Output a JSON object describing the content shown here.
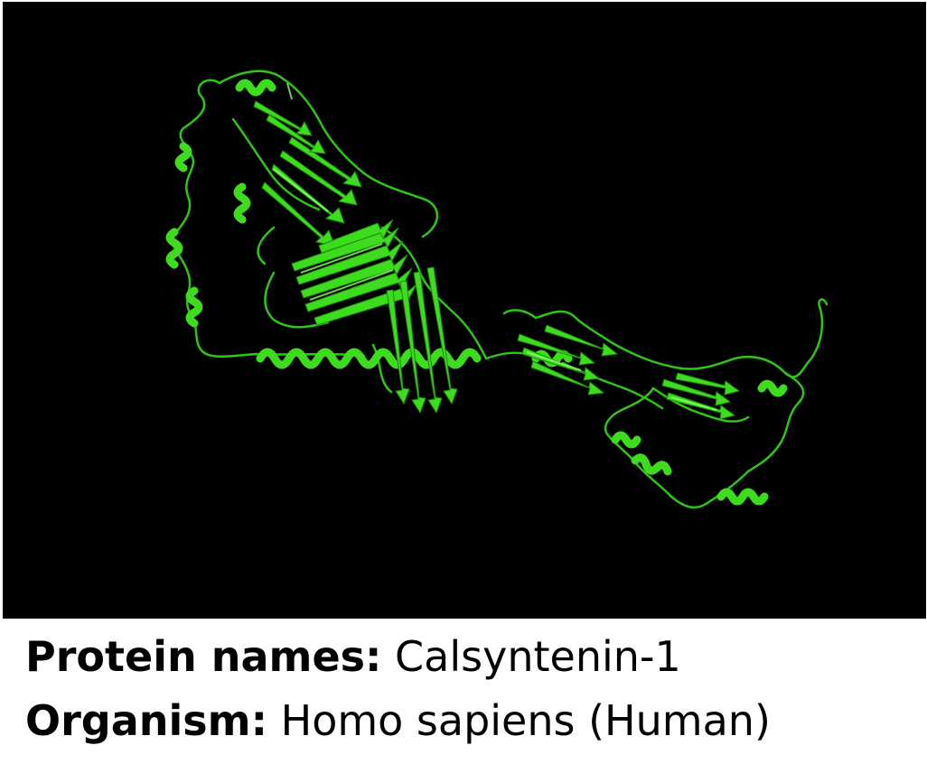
{
  "figure": {
    "protein_label": "Protein names:",
    "protein_value": "Calsyntenin-1",
    "organism_label": "Organism:",
    "organism_value": "Homo sapiens (Human)"
  },
  "colors": {
    "background": "#000000",
    "ribbon": "#3ddc1e",
    "ribbon_highlight": "#8dff6a",
    "text": "#000000"
  }
}
